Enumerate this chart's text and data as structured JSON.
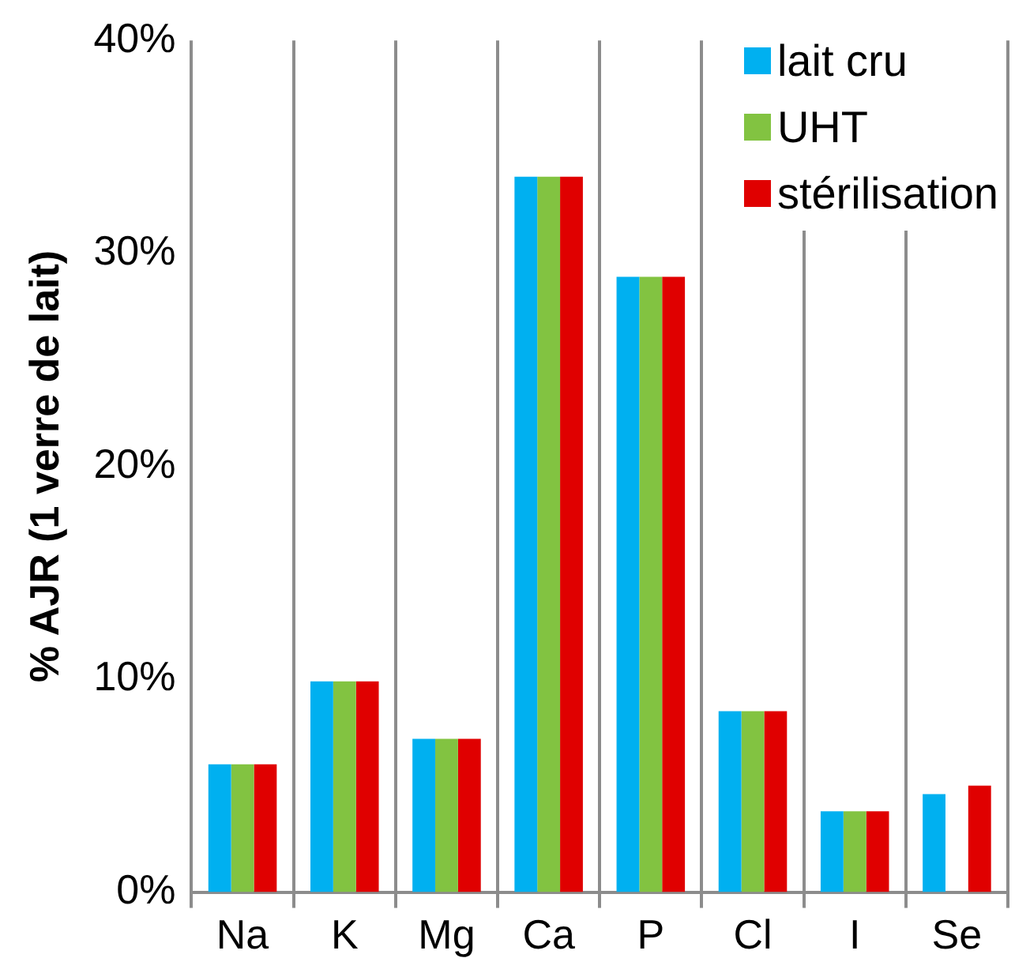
{
  "chart_data": {
    "type": "bar",
    "ylabel": "% AJR (1 verre de lait)",
    "categories": [
      "Na",
      "K",
      "Mg",
      "Ca",
      "P",
      "Cl",
      "I",
      "Se"
    ],
    "series": [
      {
        "name": "lait cru",
        "color": "#00b0f0",
        "values": [
          6.0,
          9.9,
          7.2,
          33.6,
          28.9,
          8.5,
          3.8,
          4.6
        ]
      },
      {
        "name": "UHT",
        "color": "#82c341",
        "values": [
          6.0,
          9.9,
          7.2,
          33.6,
          28.9,
          8.5,
          3.8,
          null
        ]
      },
      {
        "name": "stérilisation",
        "color": "#e00000",
        "values": [
          6.0,
          9.9,
          7.2,
          33.6,
          28.9,
          8.5,
          3.8,
          5.0
        ]
      }
    ],
    "ylim": [
      0,
      40
    ],
    "yticks": [
      {
        "value": 0,
        "label": "0%"
      },
      {
        "value": 10,
        "label": "10%"
      },
      {
        "value": 20,
        "label": "20%"
      },
      {
        "value": 30,
        "label": "30%"
      },
      {
        "value": 40,
        "label": "40%"
      }
    ],
    "grid": "x",
    "legend": "top right"
  }
}
